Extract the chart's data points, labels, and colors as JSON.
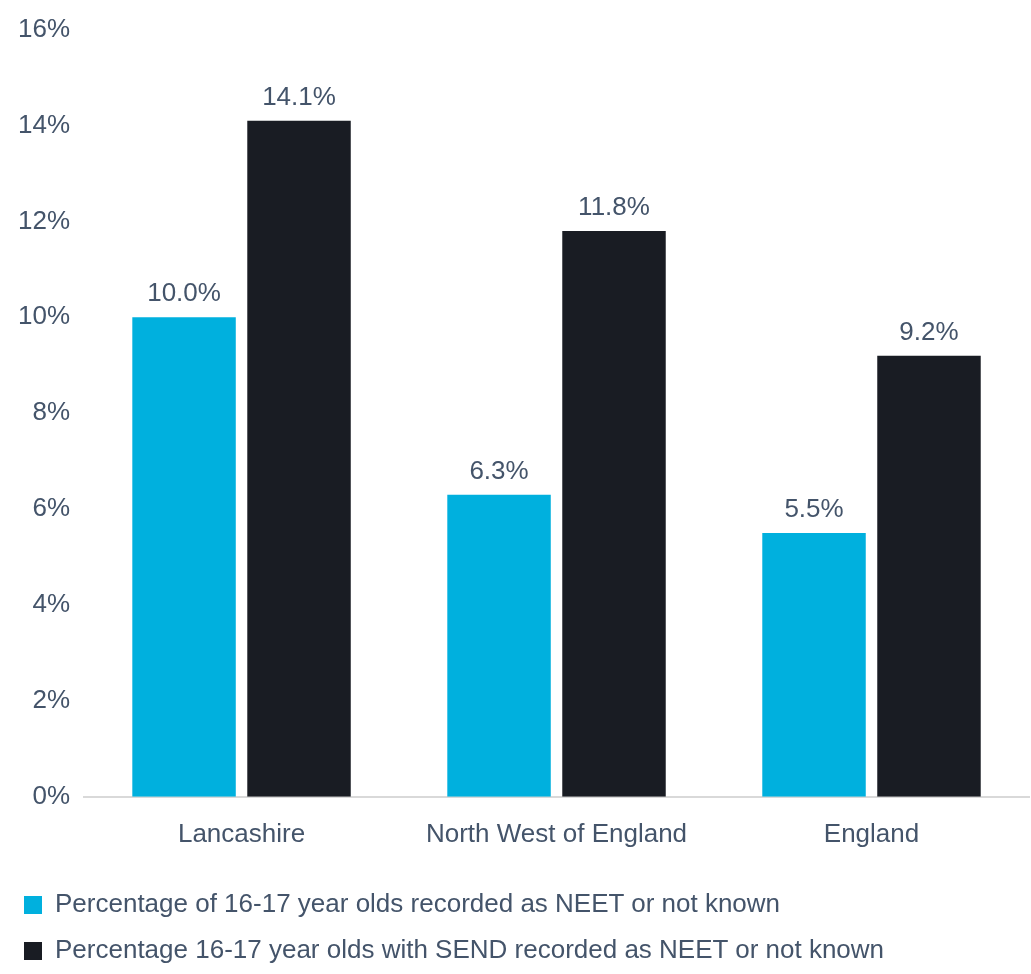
{
  "chart_data": {
    "type": "bar",
    "categories": [
      "Lancashire",
      "North West of England",
      "England"
    ],
    "series": [
      {
        "name": "Percentage of 16-17 year olds recorded as NEET or not known",
        "color": "#00b0de",
        "values": [
          10.0,
          6.3,
          5.5
        ],
        "value_labels": [
          "10.0%",
          "6.3%",
          "5.5%"
        ]
      },
      {
        "name": "Percentage 16-17 year olds with SEND recorded as NEET or not known",
        "color": "#191c23",
        "values": [
          14.1,
          11.8,
          9.2
        ],
        "value_labels": [
          "14.1%",
          "11.8%",
          "9.2%"
        ]
      }
    ],
    "ylim": [
      0,
      16
    ],
    "yticks": [
      {
        "value": 0,
        "label": "0%"
      },
      {
        "value": 2,
        "label": "2%"
      },
      {
        "value": 4,
        "label": "4%"
      },
      {
        "value": 6,
        "label": "6%"
      },
      {
        "value": 8,
        "label": "8%"
      },
      {
        "value": 10,
        "label": "10%"
      },
      {
        "value": 12,
        "label": "12%"
      },
      {
        "value": 14,
        "label": "14%"
      },
      {
        "value": 16,
        "label": "16%"
      }
    ],
    "grid": false,
    "legend": "bottom"
  }
}
